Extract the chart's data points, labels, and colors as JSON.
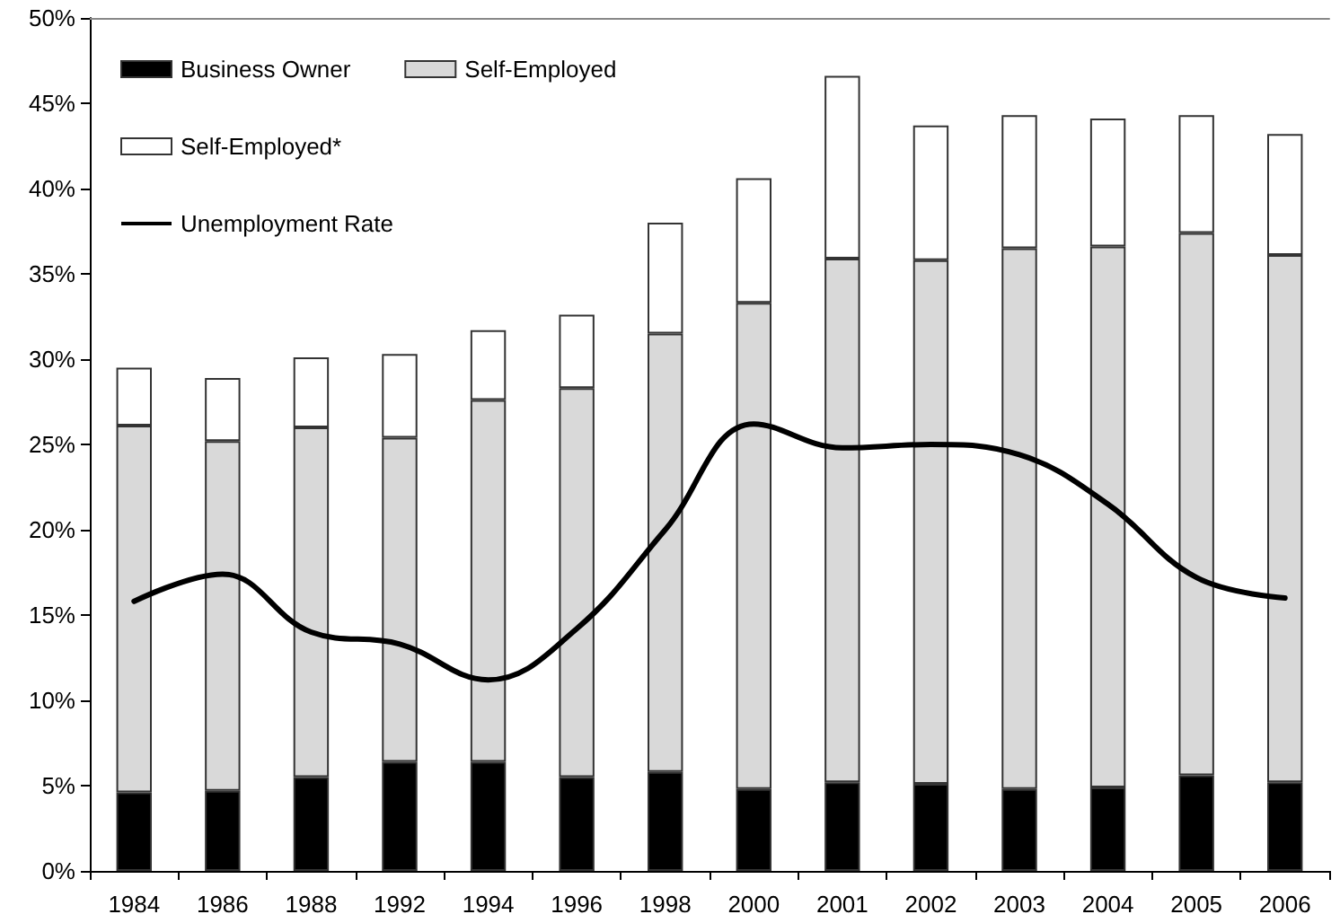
{
  "chart_data": {
    "type": "bar",
    "stacked": true,
    "categories": [
      "1984",
      "1986",
      "1988",
      "1992",
      "1994",
      "1996",
      "1998",
      "2000",
      "2001",
      "2002",
      "2003",
      "2004",
      "2005",
      "2006"
    ],
    "series": [
      {
        "name": "Business Owner",
        "color": "#000000",
        "values": [
          4.6,
          4.7,
          5.5,
          6.4,
          6.4,
          5.5,
          5.8,
          4.8,
          5.2,
          5.1,
          4.8,
          4.9,
          5.6,
          5.2
        ]
      },
      {
        "name": "Self-Employed",
        "color": "#d9d9d9",
        "values": [
          21.5,
          20.5,
          20.5,
          19.0,
          21.2,
          22.8,
          25.7,
          28.5,
          30.7,
          30.7,
          31.7,
          31.7,
          31.8,
          30.9
        ]
      },
      {
        "name": "Self-Employed*",
        "color": "#ffffff",
        "values": [
          3.4,
          3.7,
          4.1,
          4.9,
          4.1,
          4.3,
          6.5,
          7.3,
          10.7,
          7.9,
          7.8,
          7.5,
          6.9,
          7.1
        ]
      },
      {
        "name": "Unemployment Rate",
        "type": "line",
        "color": "#000000",
        "values": [
          15.8,
          17.4,
          14.0,
          13.3,
          11.2,
          14.2,
          20.0,
          26.2,
          24.8,
          25.0,
          24.4,
          21.5,
          17.2,
          16.0
        ]
      }
    ],
    "ylim": [
      0,
      50
    ],
    "yticks": [
      {
        "value": 0,
        "label": "0%"
      },
      {
        "value": 5,
        "label": "5%"
      },
      {
        "value": 10,
        "label": "10%"
      },
      {
        "value": 15,
        "label": "15%"
      },
      {
        "value": 20,
        "label": "20%"
      },
      {
        "value": 25,
        "label": "25%"
      },
      {
        "value": 30,
        "label": "30%"
      },
      {
        "value": 35,
        "label": "35%"
      },
      {
        "value": 40,
        "label": "40%"
      },
      {
        "value": 45,
        "label": "45%"
      },
      {
        "value": 50,
        "label": "50%"
      }
    ],
    "grid": false,
    "legend": "top left",
    "marker": "none",
    "line_style": "solid"
  }
}
